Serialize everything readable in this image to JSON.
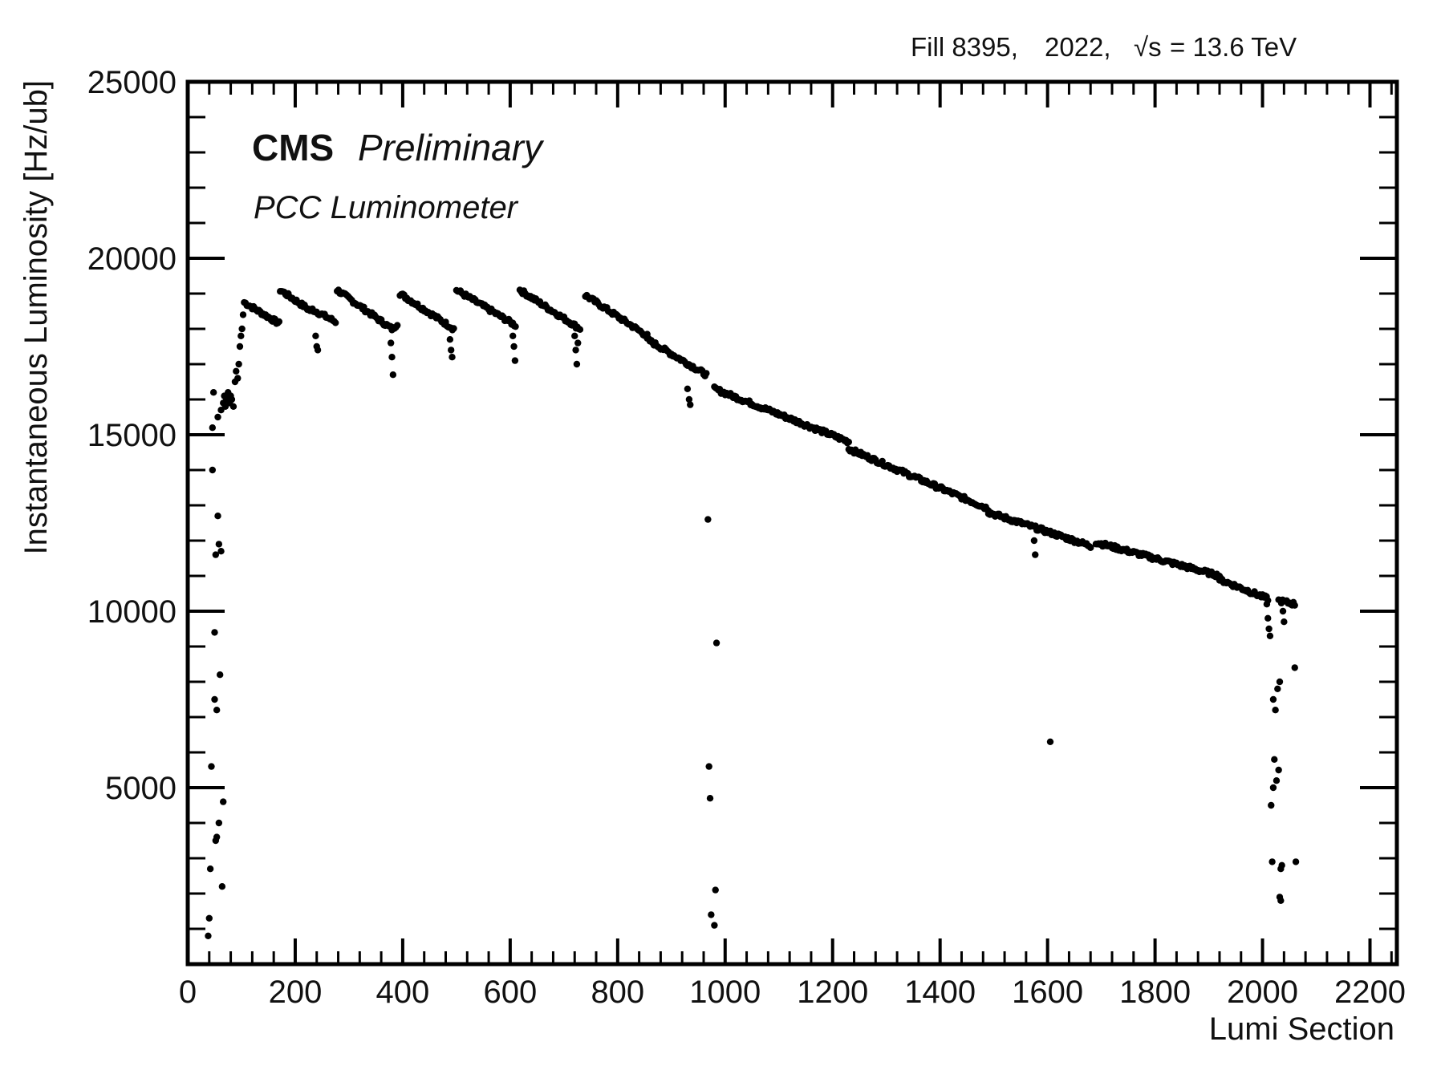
{
  "chart_data": {
    "type": "scatter",
    "title": "",
    "header_info": {
      "fill_text": "Fill 8395,",
      "year_text": "2022,",
      "energy_symbol": "√s",
      "energy_text": "= 13.6 TeV"
    },
    "experiment_label": "CMS",
    "status_label": "Preliminary",
    "detector_label": "PCC Luminometer",
    "xlabel": "Lumi Section",
    "ylabel": "Instantaneous Luminosity [Hz/ub]",
    "xlim": [
      0,
      2250
    ],
    "ylim": [
      0,
      25000
    ],
    "x_ticks": [
      0,
      200,
      400,
      600,
      800,
      1000,
      1200,
      1400,
      1600,
      1800,
      2000,
      2200
    ],
    "x_tick_labels": [
      "0",
      "200",
      "400",
      "600",
      "800",
      "1000",
      "1200",
      "1400",
      "1600",
      "1800",
      "2000",
      "2200"
    ],
    "y_ticks": [
      5000,
      10000,
      15000,
      20000,
      25000
    ],
    "y_tick_labels": [
      "5000",
      "10000",
      "15000",
      "20000",
      "25000"
    ],
    "grid": false,
    "marker_color": "#000000",
    "segments": [
      {
        "x_start": 105,
        "y_start": 18750,
        "x_end": 170,
        "y_end": 18150
      },
      {
        "x_start": 172,
        "y_start": 19100,
        "x_end": 230,
        "y_end": 18500
      },
      {
        "x_start": 232,
        "y_start": 18550,
        "x_end": 275,
        "y_end": 18200
      },
      {
        "x_start": 278,
        "y_start": 19100,
        "x_end": 380,
        "y_end": 18000
      },
      {
        "x_start": 382,
        "y_start": 18000,
        "x_end": 390,
        "y_end": 18150
      },
      {
        "x_start": 395,
        "y_start": 19000,
        "x_end": 495,
        "y_end": 18000
      },
      {
        "x_start": 500,
        "y_start": 19100,
        "x_end": 610,
        "y_end": 18100
      },
      {
        "x_start": 618,
        "y_start": 19100,
        "x_end": 730,
        "y_end": 18000
      },
      {
        "x_start": 740,
        "y_start": 18950,
        "x_end": 855,
        "y_end": 17800
      },
      {
        "x_start": 855,
        "y_start": 17700,
        "x_end": 965,
        "y_end": 16700
      },
      {
        "x_start": 980,
        "y_start": 16300,
        "x_end": 1230,
        "y_end": 14800
      },
      {
        "x_start": 1230,
        "y_start": 14600,
        "x_end": 1490,
        "y_end": 12900
      },
      {
        "x_start": 1490,
        "y_start": 12800,
        "x_end": 1680,
        "y_end": 11850
      },
      {
        "x_start": 1690,
        "y_start": 11950,
        "x_end": 1920,
        "y_end": 11000
      },
      {
        "x_start": 1920,
        "y_start": 10900,
        "x_end": 2010,
        "y_end": 10350
      },
      {
        "x_start": 2030,
        "y_start": 10300,
        "x_end": 2060,
        "y_end": 10200
      }
    ],
    "points": [
      [
        38,
        800
      ],
      [
        40,
        1300
      ],
      [
        42,
        2700
      ],
      [
        44,
        5600
      ],
      [
        46,
        14000
      ],
      [
        46,
        15200
      ],
      [
        48,
        16200
      ],
      [
        50,
        7500
      ],
      [
        50,
        9400
      ],
      [
        52,
        11600
      ],
      [
        52,
        3500
      ],
      [
        54,
        3600
      ],
      [
        54,
        7200
      ],
      [
        56,
        15500
      ],
      [
        56,
        12700
      ],
      [
        58,
        11900
      ],
      [
        58,
        4000
      ],
      [
        60,
        8200
      ],
      [
        62,
        11700
      ],
      [
        62,
        15700
      ],
      [
        64,
        2200
      ],
      [
        66,
        4600
      ],
      [
        66,
        15900
      ],
      [
        68,
        16100
      ],
      [
        70,
        15800
      ],
      [
        72,
        16000
      ],
      [
        75,
        16200
      ],
      [
        78,
        15900
      ],
      [
        80,
        16100
      ],
      [
        82,
        16000
      ],
      [
        85,
        15800
      ],
      [
        88,
        16500
      ],
      [
        90,
        16800
      ],
      [
        93,
        16600
      ],
      [
        95,
        17000
      ],
      [
        97,
        17500
      ],
      [
        99,
        17800
      ],
      [
        101,
        18000
      ],
      [
        103,
        18400
      ],
      [
        238,
        17800
      ],
      [
        240,
        17500
      ],
      [
        242,
        17400
      ],
      [
        378,
        17600
      ],
      [
        380,
        17200
      ],
      [
        382,
        16700
      ],
      [
        488,
        17700
      ],
      [
        490,
        17400
      ],
      [
        492,
        17200
      ],
      [
        605,
        17800
      ],
      [
        607,
        17500
      ],
      [
        609,
        17100
      ],
      [
        720,
        17800
      ],
      [
        722,
        17400
      ],
      [
        724,
        17000
      ],
      [
        726,
        17600
      ],
      [
        930,
        16300
      ],
      [
        933,
        16000
      ],
      [
        935,
        15850
      ],
      [
        968,
        12600
      ],
      [
        970,
        5600
      ],
      [
        972,
        4700
      ],
      [
        974,
        1400
      ],
      [
        980,
        1100
      ],
      [
        982,
        2100
      ],
      [
        984,
        9100
      ],
      [
        1575,
        12000
      ],
      [
        1577,
        11600
      ],
      [
        1605,
        6300
      ],
      [
        1680,
        11800
      ],
      [
        2008,
        10200
      ],
      [
        2010,
        9800
      ],
      [
        2012,
        9500
      ],
      [
        2014,
        9300
      ],
      [
        2016,
        4500
      ],
      [
        2018,
        2900
      ],
      [
        2020,
        5000
      ],
      [
        2020,
        7500
      ],
      [
        2022,
        5800
      ],
      [
        2024,
        7200
      ],
      [
        2026,
        5200
      ],
      [
        2028,
        7800
      ],
      [
        2030,
        5500
      ],
      [
        2032,
        8000
      ],
      [
        2034,
        2700
      ],
      [
        2036,
        2800
      ],
      [
        2032,
        1900
      ],
      [
        2034,
        1800
      ],
      [
        2038,
        10000
      ],
      [
        2040,
        9700
      ],
      [
        2060,
        8400
      ],
      [
        2062,
        2900
      ]
    ]
  }
}
